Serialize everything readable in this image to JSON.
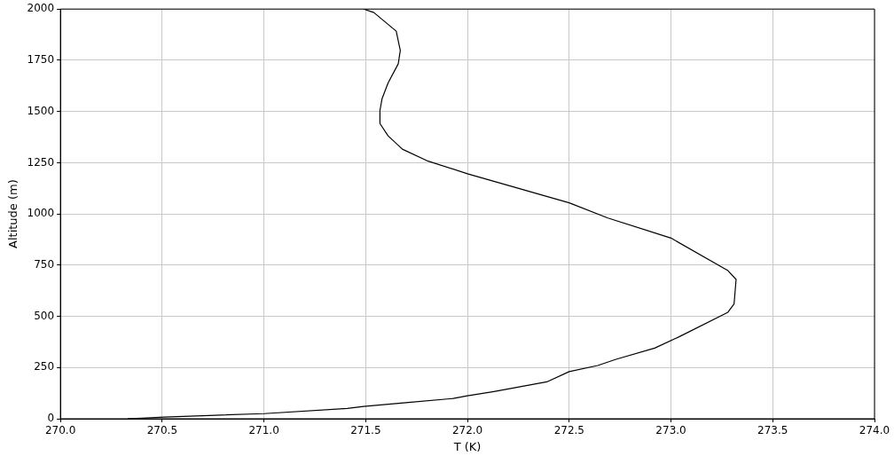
{
  "chart_data": {
    "type": "line",
    "xlabel": "T (K)",
    "ylabel": "Altitude (m)",
    "x": [
      270.33,
      270.51,
      270.73,
      271.0,
      271.41,
      271.49,
      271.71,
      271.93,
      272.0,
      272.13,
      272.39,
      272.5,
      272.64,
      272.73,
      272.92,
      273.04,
      273.28,
      273.31,
      273.32,
      273.28,
      273.0,
      272.69,
      272.5,
      272.0,
      271.8,
      271.68,
      271.61,
      271.57,
      271.57,
      271.58,
      271.61,
      271.66,
      271.67,
      271.65,
      271.54,
      271.49
    ],
    "series": [
      {
        "color": "#000000",
        "values": [
          0,
          8,
          16,
          25,
          50,
          60,
          80,
          99,
          112,
          133,
          180,
          230,
          260,
          290,
          345,
          400,
          520,
          560,
          680,
          723,
          882,
          980,
          1054,
          1196,
          1260,
          1316,
          1381,
          1441,
          1505,
          1561,
          1639,
          1733,
          1798,
          1892,
          1983,
          2000
        ]
      }
    ],
    "xlim": [
      270,
      274
    ],
    "xticks": [
      {
        "value": 270,
        "label": "270.0"
      },
      {
        "value": 270.5,
        "label": "270.5"
      },
      {
        "value": 271,
        "label": "271.0"
      },
      {
        "value": 271.5,
        "label": "271.5"
      },
      {
        "value": 272,
        "label": "272.0"
      },
      {
        "value": 272.5,
        "label": "272.5"
      },
      {
        "value": 273,
        "label": "273.0"
      },
      {
        "value": 273.5,
        "label": "273.5"
      },
      {
        "value": 274,
        "label": "274.0"
      }
    ],
    "ylim": [
      0,
      2000
    ],
    "yticks": [
      0,
      250,
      500,
      750,
      1000,
      1250,
      1500,
      1750,
      2000
    ],
    "grid": true,
    "legend": false,
    "marker": "none",
    "line_style": "solid"
  }
}
